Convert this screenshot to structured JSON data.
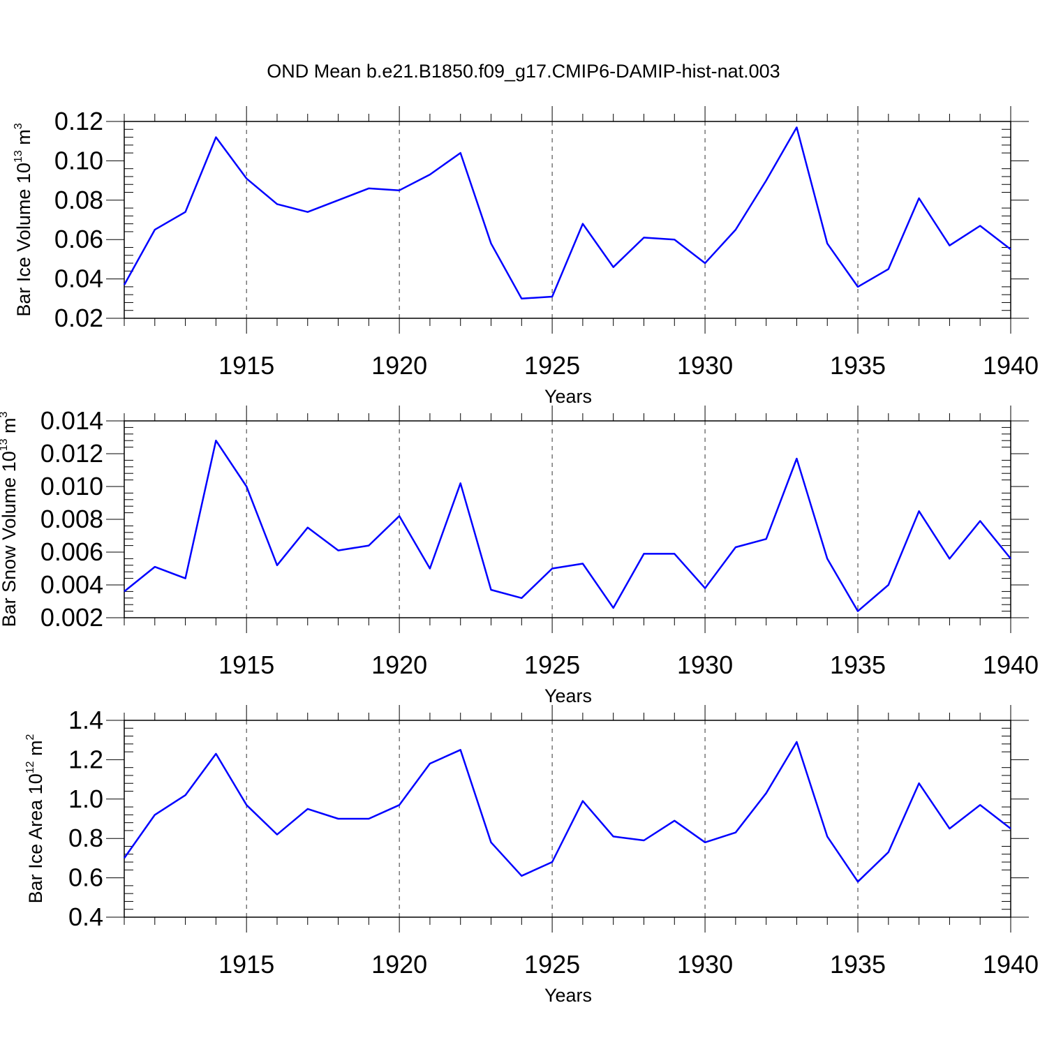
{
  "title": "OND Mean b.e21.B1850.f09_g17.CMIP6-DAMIP-hist-nat.003",
  "chart_data": [
    {
      "type": "line",
      "ylabel": {
        "text": "Bar Ice Volume 10",
        "exponent": "13",
        "unit": "m",
        "unit_exponent": "3"
      },
      "xlabel": "Years",
      "xlim": [
        1911,
        1940
      ],
      "ylim": [
        0.02,
        0.12
      ],
      "x_ticks": [
        "1915",
        "1920",
        "1925",
        "1930",
        "1935",
        "1940"
      ],
      "y_ticks": [
        "0.02",
        "0.04",
        "0.06",
        "0.08",
        "0.10",
        "0.12"
      ],
      "grid": "dashed vertical at major x ticks",
      "line_color": "#0000ff",
      "series": [
        {
          "x": [
            1911,
            1912,
            1913,
            1914,
            1915,
            1916,
            1917,
            1918,
            1919,
            1920,
            1921,
            1922,
            1923,
            1924,
            1925,
            1926,
            1927,
            1928,
            1929,
            1930,
            1931,
            1932,
            1933,
            1934,
            1935,
            1936,
            1937,
            1938,
            1939,
            1940
          ],
          "values": [
            0.037,
            0.065,
            0.074,
            0.112,
            0.091,
            0.078,
            0.074,
            0.08,
            0.086,
            0.085,
            0.093,
            0.104,
            0.058,
            0.03,
            0.031,
            0.068,
            0.046,
            0.061,
            0.06,
            0.048,
            0.065,
            0.09,
            0.117,
            0.058,
            0.036,
            0.045,
            0.081,
            0.057,
            0.067,
            0.055
          ]
        }
      ]
    },
    {
      "type": "line",
      "ylabel": {
        "text": "Bar Snow Volume 10",
        "exponent": "13",
        "unit": "m",
        "unit_exponent": "3"
      },
      "xlabel": "Years",
      "xlim": [
        1911,
        1940
      ],
      "ylim": [
        0.002,
        0.014
      ],
      "x_ticks": [
        "1915",
        "1920",
        "1925",
        "1930",
        "1935",
        "1940"
      ],
      "y_ticks": [
        "0.002",
        "0.004",
        "0.006",
        "0.008",
        "0.010",
        "0.012",
        "0.014"
      ],
      "grid": "dashed vertical at major x ticks",
      "line_color": "#0000ff",
      "series": [
        {
          "x": [
            1911,
            1912,
            1913,
            1914,
            1915,
            1916,
            1917,
            1918,
            1919,
            1920,
            1921,
            1922,
            1923,
            1924,
            1925,
            1926,
            1927,
            1928,
            1929,
            1930,
            1931,
            1932,
            1933,
            1934,
            1935,
            1936,
            1937,
            1938,
            1939,
            1940
          ],
          "values": [
            0.0036,
            0.0051,
            0.0044,
            0.0128,
            0.01,
            0.0052,
            0.0075,
            0.0061,
            0.0064,
            0.0082,
            0.005,
            0.0102,
            0.0037,
            0.0032,
            0.005,
            0.0053,
            0.0026,
            0.0059,
            0.0059,
            0.0038,
            0.0063,
            0.0068,
            0.0117,
            0.0056,
            0.0024,
            0.004,
            0.0085,
            0.0056,
            0.0079,
            0.0056
          ]
        }
      ]
    },
    {
      "type": "line",
      "ylabel": {
        "text": "Bar Ice Area 10",
        "exponent": "12",
        "unit": "m",
        "unit_exponent": "2"
      },
      "xlabel": "Years",
      "xlim": [
        1911,
        1940
      ],
      "ylim": [
        0.4,
        1.4
      ],
      "x_ticks": [
        "1915",
        "1920",
        "1925",
        "1930",
        "1935",
        "1940"
      ],
      "y_ticks": [
        "0.4",
        "0.6",
        "0.8",
        "1.0",
        "1.2",
        "1.4"
      ],
      "grid": "dashed vertical at major x ticks",
      "line_color": "#0000ff",
      "series": [
        {
          "x": [
            1911,
            1912,
            1913,
            1914,
            1915,
            1916,
            1917,
            1918,
            1919,
            1920,
            1921,
            1922,
            1923,
            1924,
            1925,
            1926,
            1927,
            1928,
            1929,
            1930,
            1931,
            1932,
            1933,
            1934,
            1935,
            1936,
            1937,
            1938,
            1939,
            1940
          ],
          "values": [
            0.7,
            0.92,
            1.02,
            1.23,
            0.97,
            0.82,
            0.95,
            0.9,
            0.9,
            0.97,
            1.18,
            1.25,
            0.78,
            0.61,
            0.68,
            0.99,
            0.81,
            0.79,
            0.89,
            0.78,
            0.83,
            1.03,
            1.29,
            0.81,
            0.58,
            0.73,
            1.08,
            0.85,
            0.97,
            0.85
          ]
        }
      ]
    }
  ]
}
